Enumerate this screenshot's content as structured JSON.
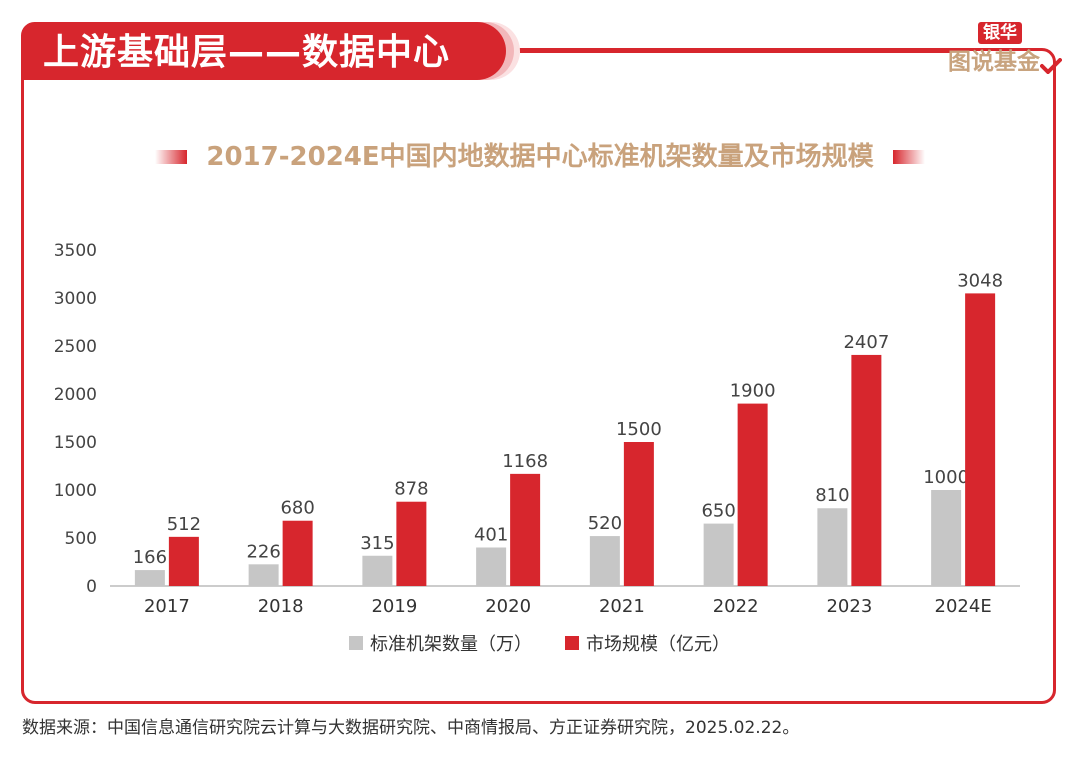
{
  "header": {
    "title": "上游基础层——数据中心"
  },
  "logo": {
    "top": "银华",
    "bottom": "图说基金",
    "accent": "#d7262d",
    "gold": "#c8a37e"
  },
  "chart_data": {
    "type": "bar",
    "title": "2017-2024E中国内地数据中心标准机架数量及市场规模",
    "categories": [
      "2017",
      "2018",
      "2019",
      "2020",
      "2021",
      "2022",
      "2023",
      "2024E"
    ],
    "series": [
      {
        "name": "标准机架数量（万）",
        "color": "#c6c6c6",
        "values": [
          166,
          226,
          315,
          401,
          520,
          650,
          810,
          1000
        ]
      },
      {
        "name": "市场规模（亿元）",
        "color": "#d7262d",
        "values": [
          512,
          680,
          878,
          1168,
          1500,
          1900,
          2407,
          3048
        ]
      }
    ],
    "ylim": [
      0,
      3500
    ],
    "yticks": [
      0,
      500,
      1000,
      1500,
      2000,
      2500,
      3000,
      3500
    ],
    "grid": false,
    "legend": "bottom",
    "xlabel": "",
    "ylabel": ""
  },
  "source": "数据来源：中国信息通信研究院云计算与大数据研究院、中商情报局、方正证券研究院，2025.02.22。"
}
